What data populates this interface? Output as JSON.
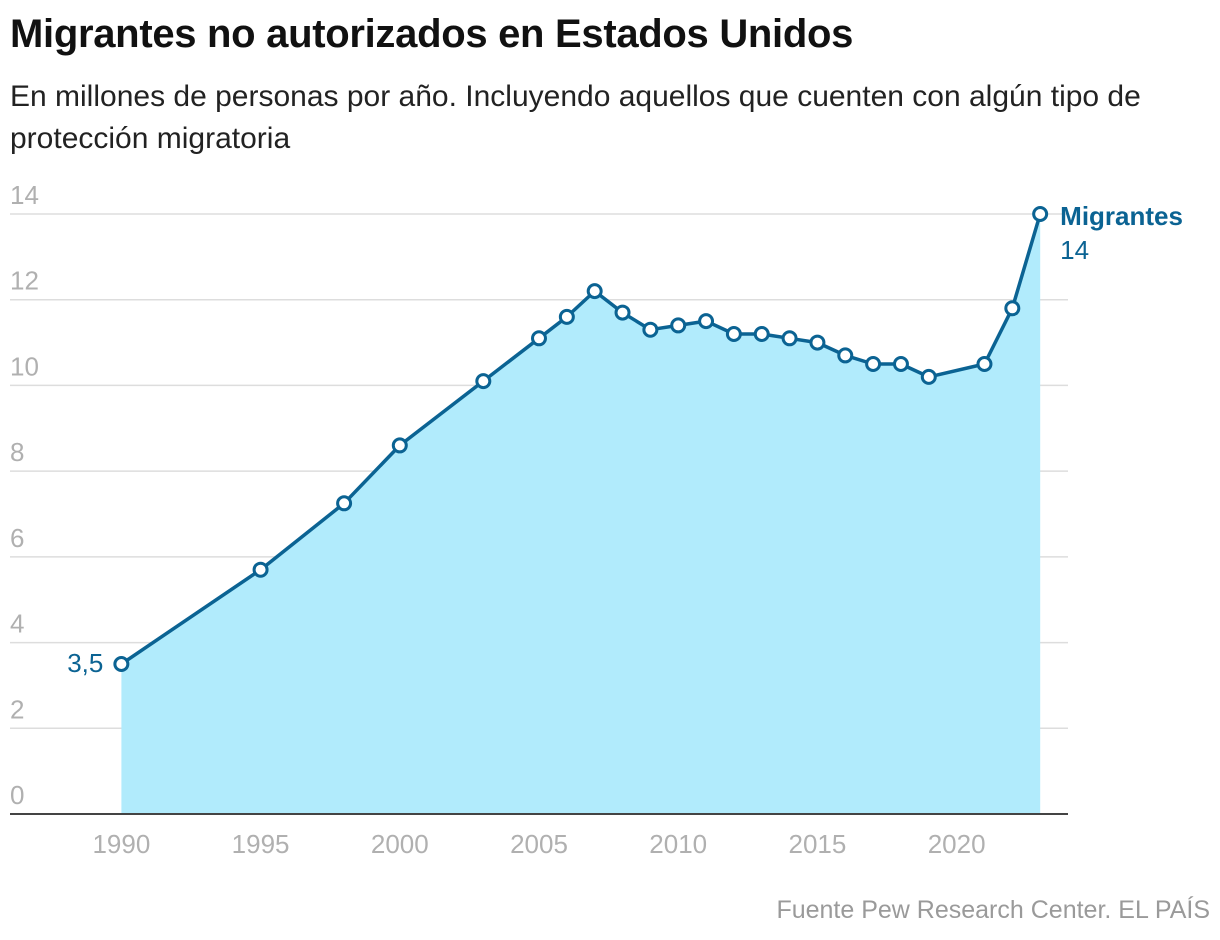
{
  "title": "Migrantes no autorizados en Estados Unidos",
  "subtitle": "En millones de personas por año. Incluyendo aquellos que cuenten con algún tipo de protección migratoria",
  "source": "Fuente Pew Research Center. EL PAÍS",
  "colors": {
    "line": "#0b6393",
    "area": "#b1ebfc",
    "grid": "#dddddd",
    "axis": "#444444",
    "tick": "#b0b0b0"
  },
  "chart_data": {
    "type": "area",
    "title": "Migrantes no autorizados en Estados Unidos",
    "xlabel": "",
    "ylabel": "En millones de personas por año",
    "xlim": [
      1986,
      2024
    ],
    "ylim": [
      0,
      14
    ],
    "grid": true,
    "y_ticks": [
      0,
      2,
      4,
      6,
      8,
      10,
      12,
      14
    ],
    "y_tick_labels": [
      "0",
      "2",
      "4",
      "6",
      "8",
      "10",
      "12",
      "14"
    ],
    "x_ticks": [
      1990,
      1995,
      2000,
      2005,
      2010,
      2015,
      2020
    ],
    "x_tick_labels": [
      "1990",
      "1995",
      "2000",
      "2005",
      "2010",
      "2015",
      "2020"
    ],
    "series": [
      {
        "name": "Migrantes",
        "x": [
          1990,
          1995,
          1998,
          2000,
          2003,
          2005,
          2006,
          2007,
          2008,
          2009,
          2010,
          2011,
          2012,
          2013,
          2014,
          2015,
          2016,
          2017,
          2018,
          2019,
          2021,
          2022,
          2023
        ],
        "values": [
          3.5,
          5.7,
          7.25,
          8.6,
          10.1,
          11.1,
          11.6,
          12.2,
          11.7,
          11.3,
          11.4,
          11.5,
          11.2,
          11.2,
          11.1,
          11.0,
          10.7,
          10.5,
          10.5,
          10.2,
          10.5,
          11.8,
          14.0
        ]
      }
    ],
    "annotations": {
      "start_value_label": "3,5",
      "end_series_label": "Migrantes",
      "end_value_label": "14"
    }
  }
}
